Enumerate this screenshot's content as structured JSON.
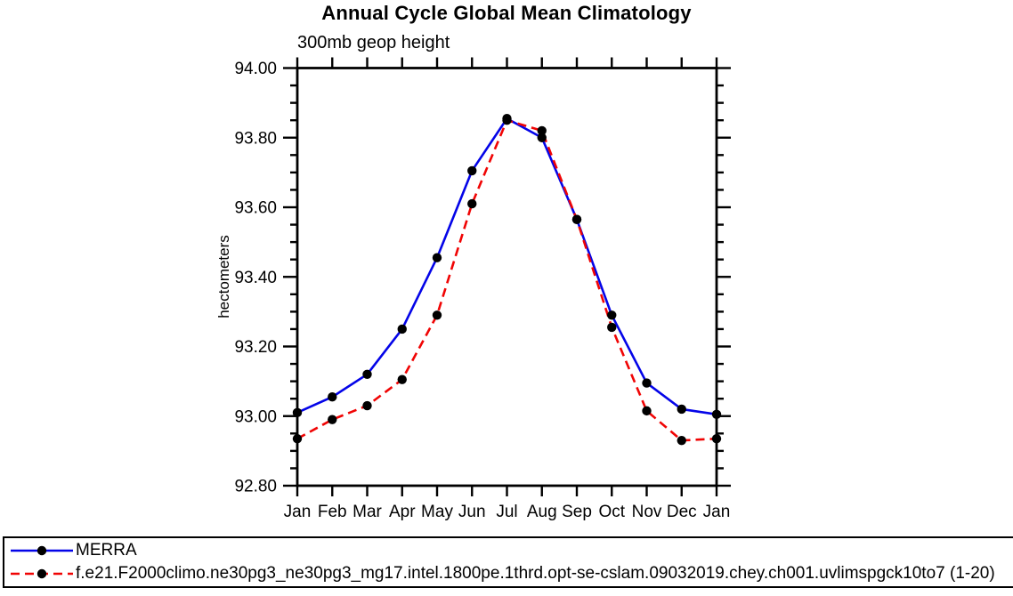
{
  "chart_data": {
    "type": "line",
    "title": "Annual Cycle Global Mean Climatology",
    "subtitle": "300mb geop height",
    "ylabel": "hectometers",
    "xlabel": "",
    "categories": [
      "Jan",
      "Feb",
      "Mar",
      "Apr",
      "May",
      "Jun",
      "Jul",
      "Aug",
      "Sep",
      "Oct",
      "Nov",
      "Dec",
      "Jan"
    ],
    "ylim": [
      92.8,
      94.0
    ],
    "y_major_ticks": [
      92.8,
      93.0,
      93.2,
      93.4,
      93.6,
      93.8,
      94.0
    ],
    "y_minor_step": 0.05,
    "grid": false,
    "legend_position": "bottom-boxed",
    "series": [
      {
        "name": "MERRA",
        "color": "#0404e8",
        "style": "solid",
        "marker": "circle",
        "marker_color": "#000000",
        "values": [
          93.01,
          93.055,
          93.12,
          93.25,
          93.455,
          93.705,
          93.855,
          93.8,
          93.565,
          93.29,
          93.095,
          93.02,
          93.005
        ]
      },
      {
        "name": "f.e21.F2000climo.ne30pg3_ne30pg3_mg17.intel.1800pe.1thrd.opt-se-cslam.09032019.chey.ch001.uvlimspgck10to7 (1-20)",
        "color": "#f00404",
        "style": "dashed",
        "marker": "circle",
        "marker_color": "#000000",
        "values": [
          92.935,
          92.99,
          93.03,
          93.105,
          93.29,
          93.61,
          93.85,
          93.82,
          93.565,
          93.255,
          93.015,
          92.93,
          92.935
        ]
      }
    ]
  },
  "colors": {
    "axis": "#000000",
    "background": "#ffffff",
    "text": "#000000"
  }
}
